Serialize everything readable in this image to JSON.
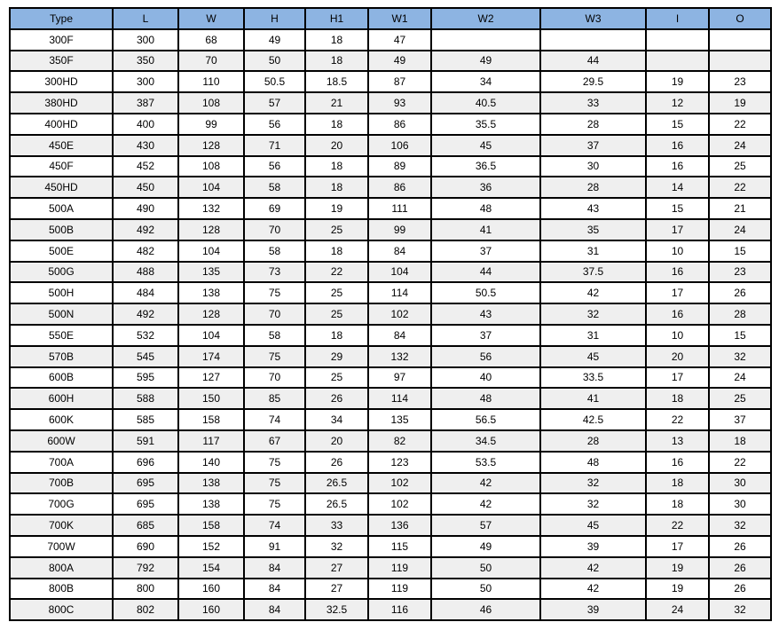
{
  "table": {
    "columns": [
      "Type",
      "L",
      "W",
      "H",
      "H1",
      "W1",
      "W2",
      "W3",
      "I",
      "O"
    ],
    "rows": [
      [
        "300F",
        "300",
        "68",
        "49",
        "18",
        "47",
        "",
        "",
        "",
        ""
      ],
      [
        "350F",
        "350",
        "70",
        "50",
        "18",
        "49",
        "49",
        "44",
        "",
        ""
      ],
      [
        "300HD",
        "300",
        "110",
        "50.5",
        "18.5",
        "87",
        "34",
        "29.5",
        "19",
        "23"
      ],
      [
        "380HD",
        "387",
        "108",
        "57",
        "21",
        "93",
        "40.5",
        "33",
        "12",
        "19"
      ],
      [
        "400HD",
        "400",
        "99",
        "56",
        "18",
        "86",
        "35.5",
        "28",
        "15",
        "22"
      ],
      [
        "450E",
        "430",
        "128",
        "71",
        "20",
        "106",
        "45",
        "37",
        "16",
        "24"
      ],
      [
        "450F",
        "452",
        "108",
        "56",
        "18",
        "89",
        "36.5",
        "30",
        "16",
        "25"
      ],
      [
        "450HD",
        "450",
        "104",
        "58",
        "18",
        "86",
        "36",
        "28",
        "14",
        "22"
      ],
      [
        "500A",
        "490",
        "132",
        "69",
        "19",
        "111",
        "48",
        "43",
        "15",
        "21"
      ],
      [
        "500B",
        "492",
        "128",
        "70",
        "25",
        "99",
        "41",
        "35",
        "17",
        "24"
      ],
      [
        "500E",
        "482",
        "104",
        "58",
        "18",
        "84",
        "37",
        "31",
        "10",
        "15"
      ],
      [
        "500G",
        "488",
        "135",
        "73",
        "22",
        "104",
        "44",
        "37.5",
        "16",
        "23"
      ],
      [
        "500H",
        "484",
        "138",
        "75",
        "25",
        "114",
        "50.5",
        "42",
        "17",
        "26"
      ],
      [
        "500N",
        "492",
        "128",
        "70",
        "25",
        "102",
        "43",
        "32",
        "16",
        "28"
      ],
      [
        "550E",
        "532",
        "104",
        "58",
        "18",
        "84",
        "37",
        "31",
        "10",
        "15"
      ],
      [
        "570B",
        "545",
        "174",
        "75",
        "29",
        "132",
        "56",
        "45",
        "20",
        "32"
      ],
      [
        "600B",
        "595",
        "127",
        "70",
        "25",
        "97",
        "40",
        "33.5",
        "17",
        "24"
      ],
      [
        "600H",
        "588",
        "150",
        "85",
        "26",
        "114",
        "48",
        "41",
        "18",
        "25"
      ],
      [
        "600K",
        "585",
        "158",
        "74",
        "34",
        "135",
        "56.5",
        "42.5",
        "22",
        "37"
      ],
      [
        "600W",
        "591",
        "117",
        "67",
        "20",
        "82",
        "34.5",
        "28",
        "13",
        "18"
      ],
      [
        "700A",
        "696",
        "140",
        "75",
        "26",
        "123",
        "53.5",
        "48",
        "16",
        "22"
      ],
      [
        "700B",
        "695",
        "138",
        "75",
        "26.5",
        "102",
        "42",
        "32",
        "18",
        "30"
      ],
      [
        "700G",
        "695",
        "138",
        "75",
        "26.5",
        "102",
        "42",
        "32",
        "18",
        "30"
      ],
      [
        "700K",
        "685",
        "158",
        "74",
        "33",
        "136",
        "57",
        "45",
        "22",
        "32"
      ],
      [
        "700W",
        "690",
        "152",
        "91",
        "32",
        "115",
        "49",
        "39",
        "17",
        "26"
      ],
      [
        "800A",
        "792",
        "154",
        "84",
        "27",
        "119",
        "50",
        "42",
        "19",
        "26"
      ],
      [
        "800B",
        "800",
        "160",
        "84",
        "27",
        "119",
        "50",
        "42",
        "19",
        "26"
      ],
      [
        "800C",
        "802",
        "160",
        "84",
        "32.5",
        "116",
        "46",
        "39",
        "24",
        "32"
      ]
    ],
    "colors": {
      "header_bg": "#8DB4E2",
      "alt_row_bg": "#EFEFEF",
      "border": "#000000"
    }
  }
}
